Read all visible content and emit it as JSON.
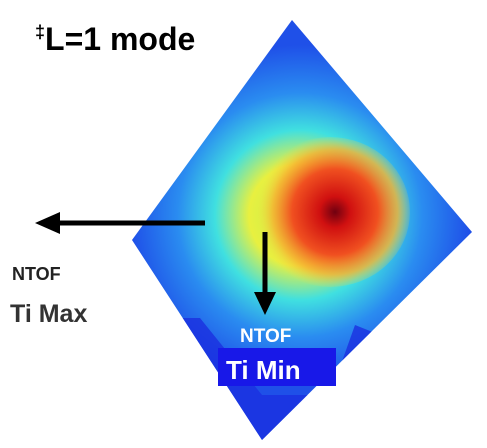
{
  "title": {
    "mark": "‡",
    "text": "L=1 mode"
  },
  "labels": [
    {
      "line1": "NTOF",
      "line2": "Ti Max"
    },
    {
      "line1": "NTOF",
      "line2": "Ti Min"
    }
  ]
}
